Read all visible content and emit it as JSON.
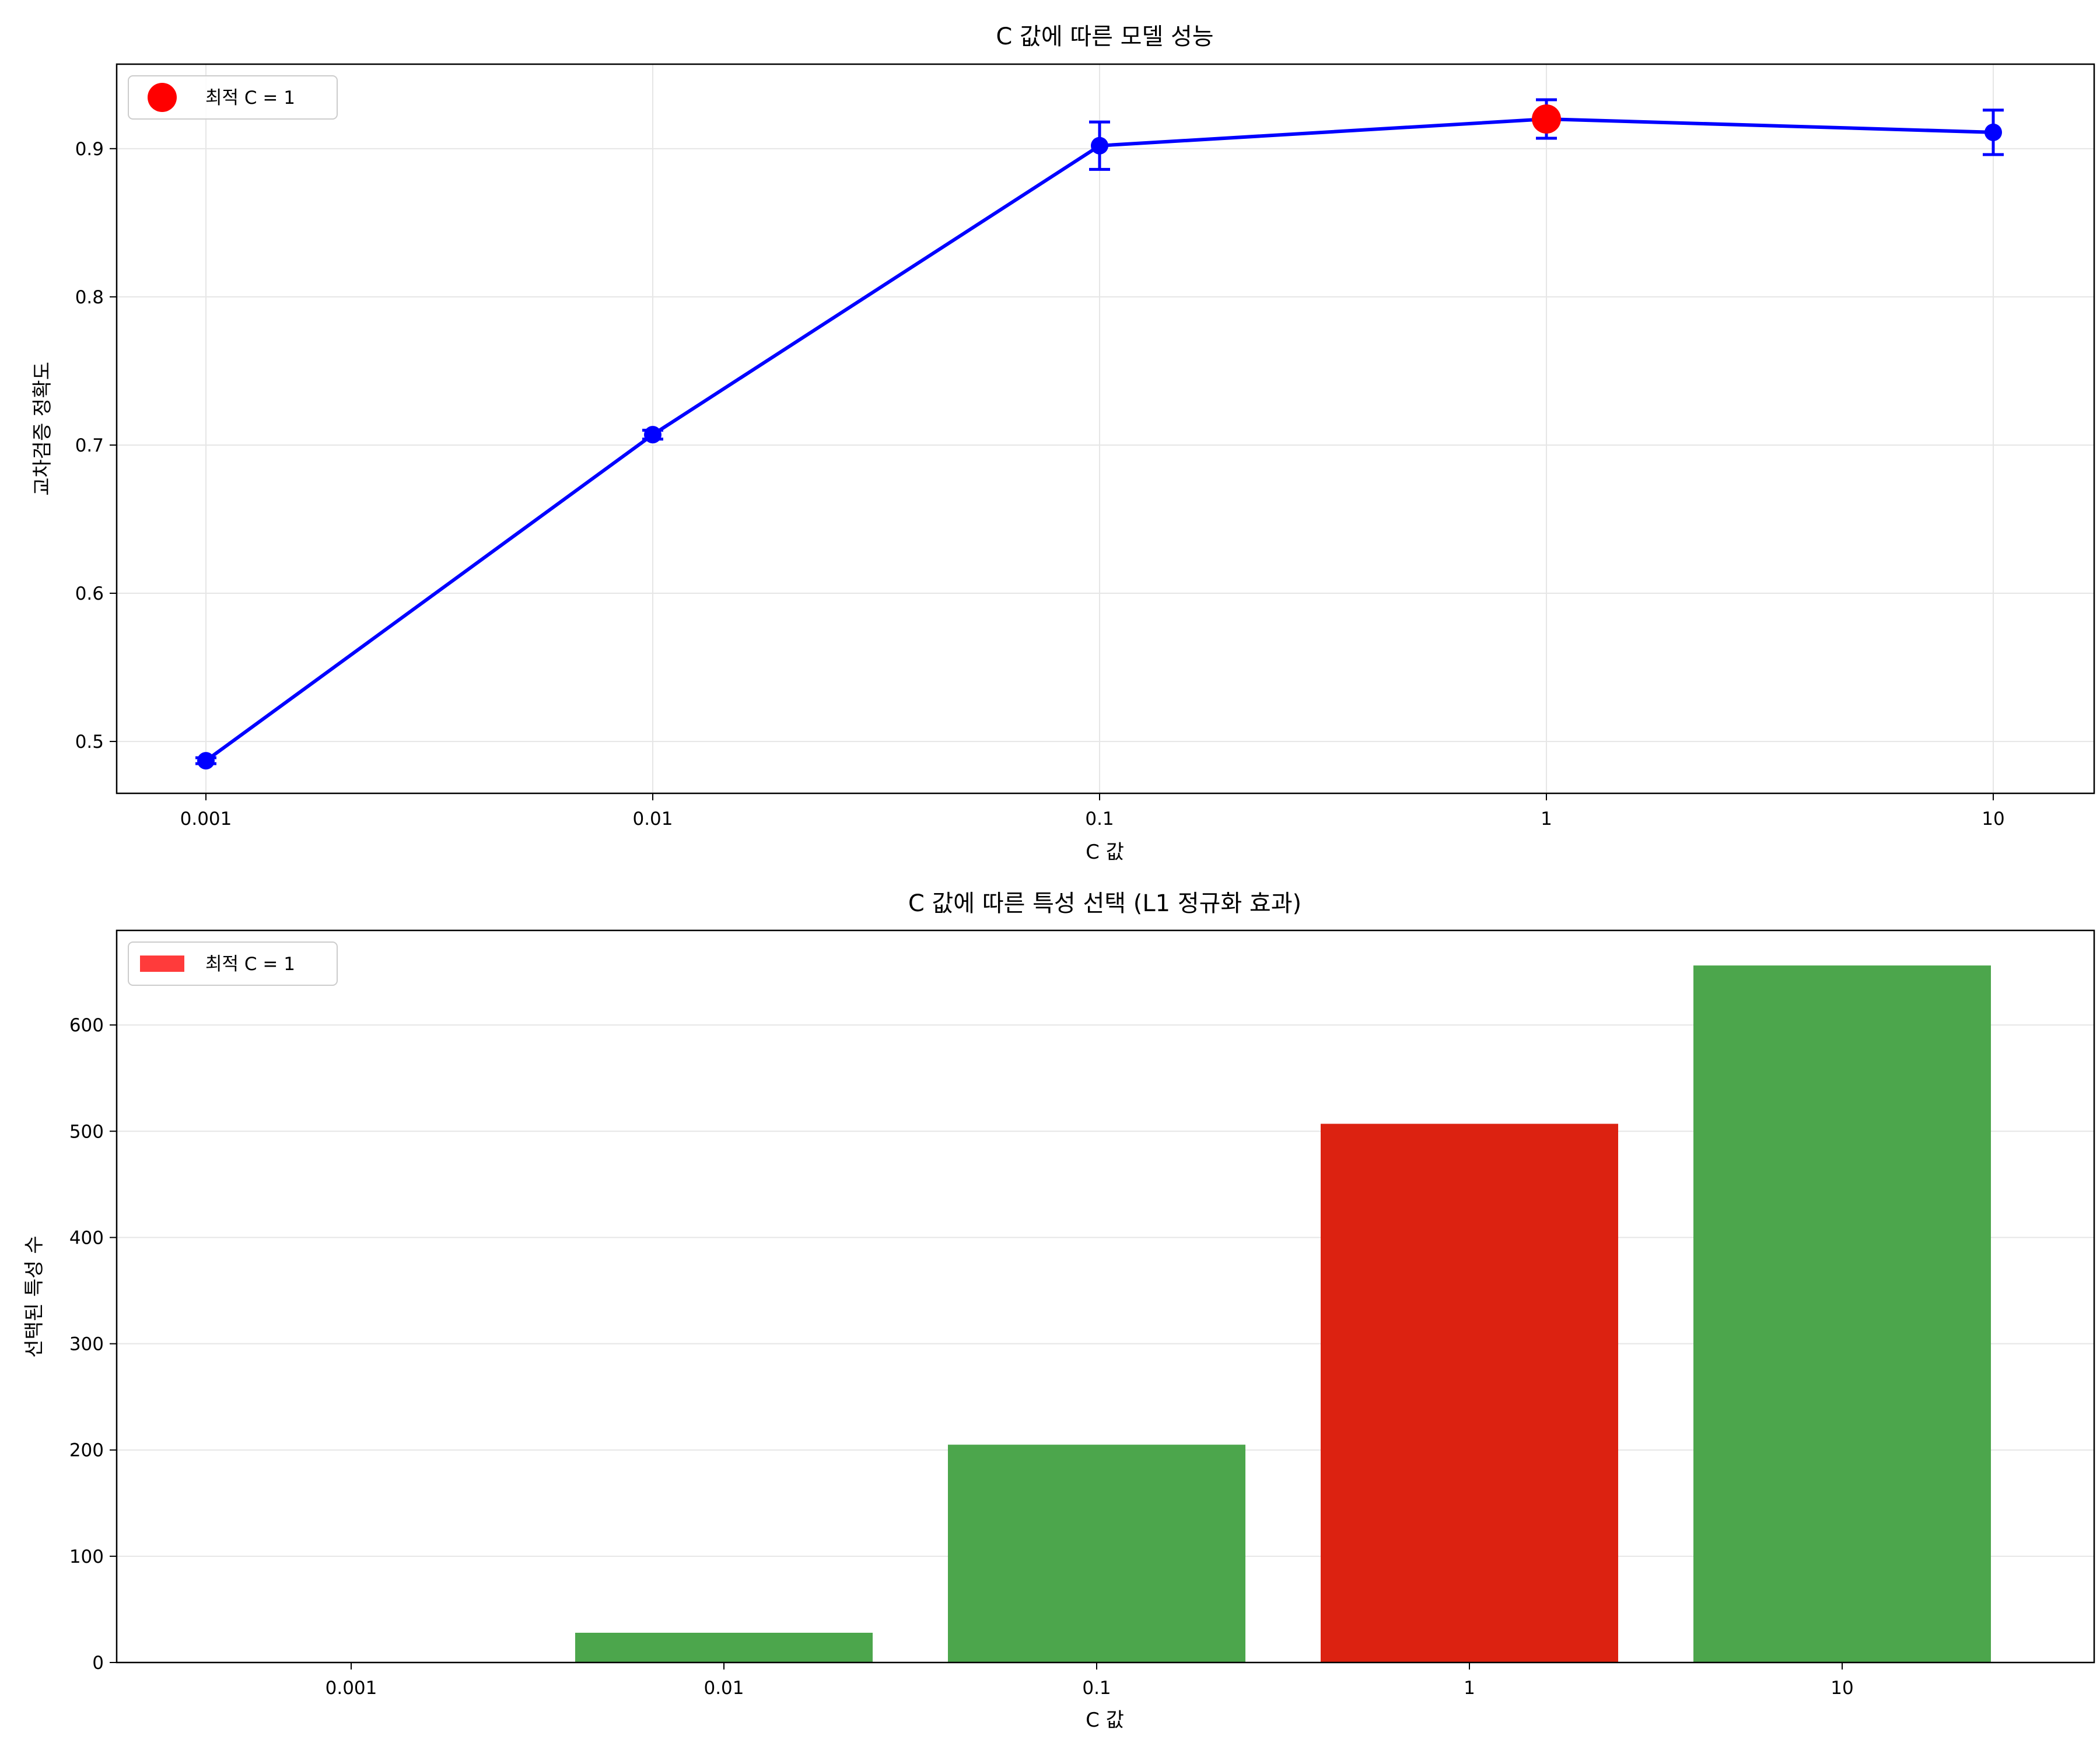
{
  "colors": {
    "line": "#0000ff",
    "best_marker": "#ff0000",
    "bar_default": "#4ca64c",
    "bar_best": "#dc2211",
    "legend_best_patch": "#ff3b3b",
    "grid": "#e6e6e6"
  },
  "chart_data": [
    {
      "type": "line",
      "title": "C 값에 따른 모델 성능",
      "xlabel": "C 값",
      "ylabel": "교차검증 정확도",
      "x_scale": "log",
      "x": [
        0.001,
        0.01,
        0.1,
        1,
        10
      ],
      "x_tick_labels": [
        "0.001",
        "0.01",
        "0.1",
        "1",
        "10"
      ],
      "y_tick_values": [
        0.5,
        0.6,
        0.7,
        0.8,
        0.9
      ],
      "y_tick_labels": [
        "0.5",
        "0.6",
        "0.7",
        "0.8",
        "0.9"
      ],
      "ylim": [
        0.465,
        0.957
      ],
      "series": [
        {
          "values": [
            0.487,
            0.707,
            0.902,
            0.92,
            0.911
          ],
          "errors": [
            0.002,
            0.003,
            0.016,
            0.013,
            0.015
          ],
          "color": "#0000ff"
        }
      ],
      "highlight": {
        "x": 1,
        "y": 0.92,
        "color": "#ff0000"
      },
      "legend": {
        "entries": [
          "최적 C = 1"
        ],
        "location": "upper left"
      },
      "grid": true
    },
    {
      "type": "bar",
      "title": "C 값에 따른 특성 선택 (L1 정규화 효과)",
      "xlabel": "C 값",
      "ylabel": "선택된 특성 수",
      "categories": [
        "0.001",
        "0.01",
        "0.1",
        "1",
        "10"
      ],
      "values": [
        0,
        28,
        205,
        507,
        656
      ],
      "bar_colors": [
        "#4ca64c",
        "#4ca64c",
        "#4ca64c",
        "#dc2211",
        "#4ca64c"
      ],
      "y_tick_values": [
        0,
        100,
        200,
        300,
        400,
        500,
        600
      ],
      "y_tick_labels": [
        "0",
        "100",
        "200",
        "300",
        "400",
        "500",
        "600"
      ],
      "ylim": [
        0,
        689
      ],
      "legend": {
        "entries": [
          "최적 C = 1"
        ],
        "location": "upper left"
      },
      "grid": true,
      "grid_axis": "y"
    }
  ]
}
